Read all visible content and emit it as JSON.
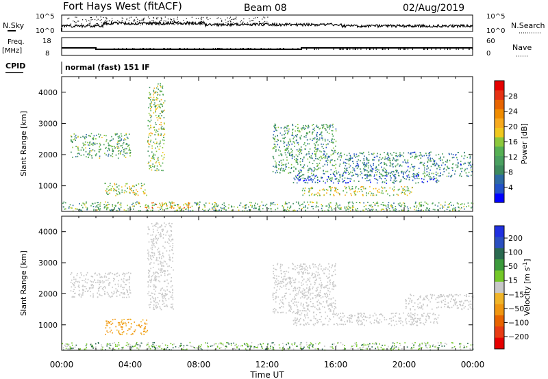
{
  "header": {
    "station": "Fort Hays West (fitACF)",
    "beam": "Beam 08",
    "date": "02/Aug/2019"
  },
  "summary_panels": {
    "nsky_label": "N.Sky",
    "nsearch_label": "N.Search",
    "freq_label_1": "Freq.",
    "freq_label_2": "[MHz]",
    "nave_label": "Nave",
    "cpid_label": "CPID",
    "cpid_text": "normal (fast) 151 IF",
    "noise_ticks": [
      "10^5",
      "10^0"
    ],
    "freq_ticks": [
      "18",
      "8"
    ],
    "nave_ticks": [
      "60",
      "0"
    ]
  },
  "colors": {
    "power": [
      "#0000ff",
      "#2352c8",
      "#2e6aa3",
      "#3d8a5e",
      "#4aa060",
      "#56b054",
      "#8cc83c",
      "#f0c81e",
      "#f7aa1e",
      "#f08c00",
      "#e86400",
      "#e63214",
      "#e60000"
    ],
    "velocity": [
      "#2030e0",
      "#2a4fc0",
      "#2a6a50",
      "#3c9a3c",
      "#74c828",
      "#c8c8c8",
      "#f0b428",
      "#f09610",
      "#e86400",
      "#e83c14",
      "#e60000"
    ]
  },
  "chart_data": [
    {
      "type": "heatmap",
      "title": "Power",
      "ylabel": "Slant Range [km]",
      "xlabel": "",
      "ylim": [
        180,
        4500
      ],
      "xlim": [
        0,
        24
      ],
      "yticks": [
        1000,
        2000,
        3000,
        4000
      ],
      "colorbar": {
        "label": "Power [dB]",
        "ticks": [
          4,
          8,
          12,
          16,
          20,
          24,
          28
        ],
        "range": [
          0,
          32
        ]
      },
      "regions": [
        {
          "x": [
            0.5,
            4.0
          ],
          "y": [
            1900,
            2700
          ],
          "v": 11
        },
        {
          "x": [
            2.5,
            5.0
          ],
          "y": [
            700,
            1100
          ],
          "v": 16
        },
        {
          "x": [
            0.0,
            24.0
          ],
          "y": [
            200,
            500
          ],
          "v": 12
        },
        {
          "x": [
            4.5,
            7.5
          ],
          "y": [
            300,
            500
          ],
          "v": 22
        },
        {
          "x": [
            5.0,
            6.0
          ],
          "y": [
            1500,
            4300
          ],
          "v": 14
        },
        {
          "x": [
            12.3,
            16.0
          ],
          "y": [
            1400,
            3000
          ],
          "v": 10
        },
        {
          "x": [
            13.5,
            22.0
          ],
          "y": [
            1100,
            1400
          ],
          "v": 6
        },
        {
          "x": [
            14.0,
            20.5
          ],
          "y": [
            700,
            1000
          ],
          "v": 16
        },
        {
          "x": [
            16.0,
            24.0
          ],
          "y": [
            1300,
            2100
          ],
          "v": 8
        }
      ]
    },
    {
      "type": "heatmap",
      "title": "Velocity",
      "ylabel": "Slant Range [km]",
      "xlabel": "Time UT",
      "ylim": [
        180,
        4500
      ],
      "xlim": [
        0,
        24
      ],
      "yticks": [
        1000,
        2000,
        3000,
        4000
      ],
      "xticks": [
        "00:00",
        "04:00",
        "08:00",
        "12:00",
        "16:00",
        "20:00",
        "00:00"
      ],
      "colorbar": {
        "label": "Velocity [m s^-1]",
        "ticks": [
          "200",
          "100",
          "50",
          "15",
          "-15",
          "-50",
          "-100",
          "-200"
        ]
      },
      "regions": [
        {
          "x": [
            0.5,
            4.0
          ],
          "y": [
            1900,
            2700
          ],
          "v": 0
        },
        {
          "x": [
            2.5,
            5.0
          ],
          "y": [
            700,
            1200
          ],
          "v": -60
        },
        {
          "x": [
            0.0,
            24.0
          ],
          "y": [
            200,
            450
          ],
          "v": 30
        },
        {
          "x": [
            5.0,
            6.5
          ],
          "y": [
            1500,
            4300
          ],
          "v": 0
        },
        {
          "x": [
            12.3,
            16.0
          ],
          "y": [
            1400,
            3000
          ],
          "v": 0
        },
        {
          "x": [
            13.5,
            22.0
          ],
          "y": [
            1000,
            1400
          ],
          "v": 0
        },
        {
          "x": [
            20.0,
            24.0
          ],
          "y": [
            1500,
            2000
          ],
          "v": 0
        }
      ]
    }
  ],
  "xaxis_label": "Time UT"
}
